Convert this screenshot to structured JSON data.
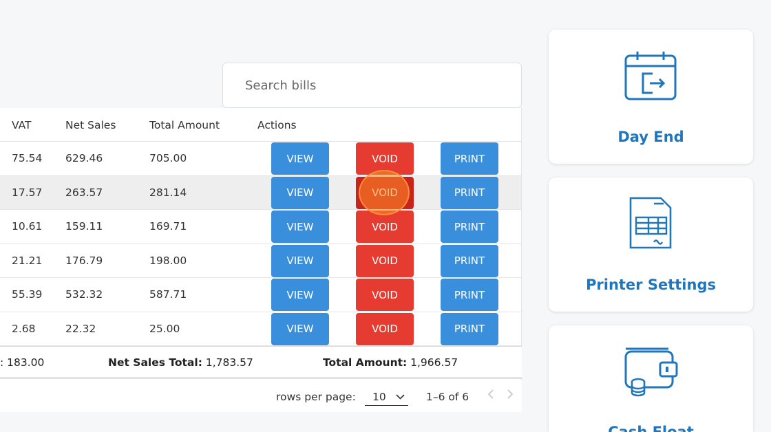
{
  "search": {
    "placeholder": "Search bills"
  },
  "table": {
    "headers": {
      "vat": "VAT",
      "net": "Net Sales",
      "total": "Total Amount",
      "actions": "Actions"
    },
    "rows": [
      {
        "vat": "75.54",
        "net": "629.46",
        "total": "705.00"
      },
      {
        "vat": "17.57",
        "net": "263.57",
        "total": "281.14"
      },
      {
        "vat": "10.61",
        "net": "159.11",
        "total": "169.71"
      },
      {
        "vat": "21.21",
        "net": "176.79",
        "total": "198.00"
      },
      {
        "vat": "55.39",
        "net": "532.32",
        "total": "587.71"
      },
      {
        "vat": "2.68",
        "net": "22.32",
        "total": "25.00"
      }
    ],
    "buttons": {
      "view": "VIEW",
      "void": "VOID",
      "print": "PRINT"
    }
  },
  "totals": {
    "vat_partial": ": 183.00",
    "net_label": "Net Sales Total:",
    "net_value": " 1,783.57",
    "amount_label": "Total Amount:",
    "amount_value": " 1,966.57"
  },
  "pager": {
    "rows_per_page_label": "rows per page:",
    "rows_per_page_value": "10",
    "range": "1–6 of 6"
  },
  "cards": [
    {
      "label": "Day End",
      "icon": "calendar-exit-icon"
    },
    {
      "label": "Printer Settings",
      "icon": "receipt-table-icon"
    },
    {
      "label": "Cash Float",
      "icon": "wallet-coins-icon"
    }
  ],
  "colors": {
    "primary": "#3a8fdc",
    "danger": "#e63b30",
    "accent_text": "#1f76bd"
  }
}
